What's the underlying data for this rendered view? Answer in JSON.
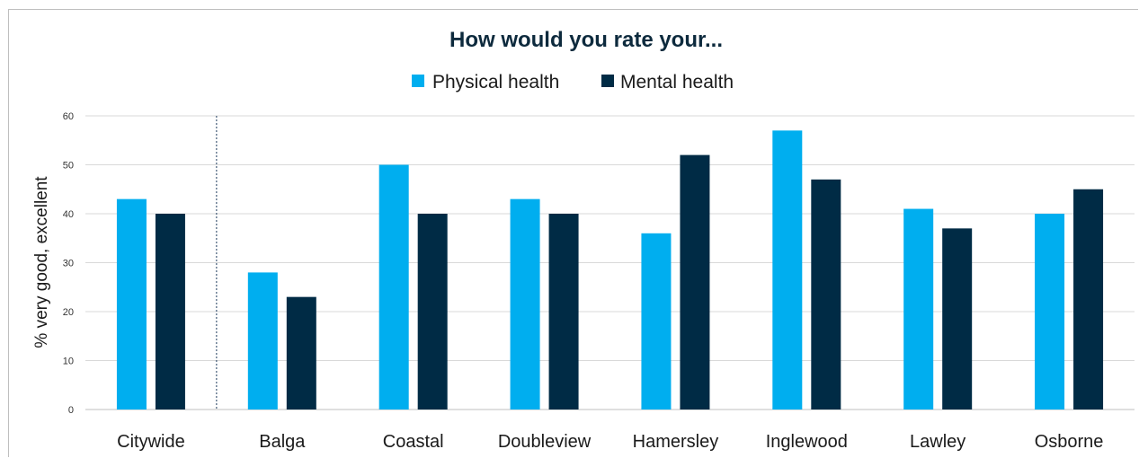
{
  "chart_data": {
    "type": "bar",
    "title": "How would you rate your...",
    "ylabel": "% very good, excellent",
    "xlabel": "",
    "categories": [
      "Citywide",
      "Balga",
      "Coastal",
      "Doubleview",
      "Hamersley",
      "Inglewood",
      "Lawley",
      "Osborne"
    ],
    "series": [
      {
        "name": "Physical health",
        "color": "#00aeef",
        "values": [
          43,
          28,
          50,
          43,
          36,
          57,
          41,
          40
        ]
      },
      {
        "name": "Mental health",
        "color": "#002b45",
        "values": [
          40,
          23,
          40,
          40,
          52,
          47,
          37,
          45
        ]
      }
    ],
    "ylim": [
      0,
      60
    ],
    "yticks": [
      0,
      10,
      20,
      30,
      40,
      50,
      60
    ],
    "grid": true,
    "legend_position": "top-center",
    "separator_after_category": "Citywide"
  }
}
